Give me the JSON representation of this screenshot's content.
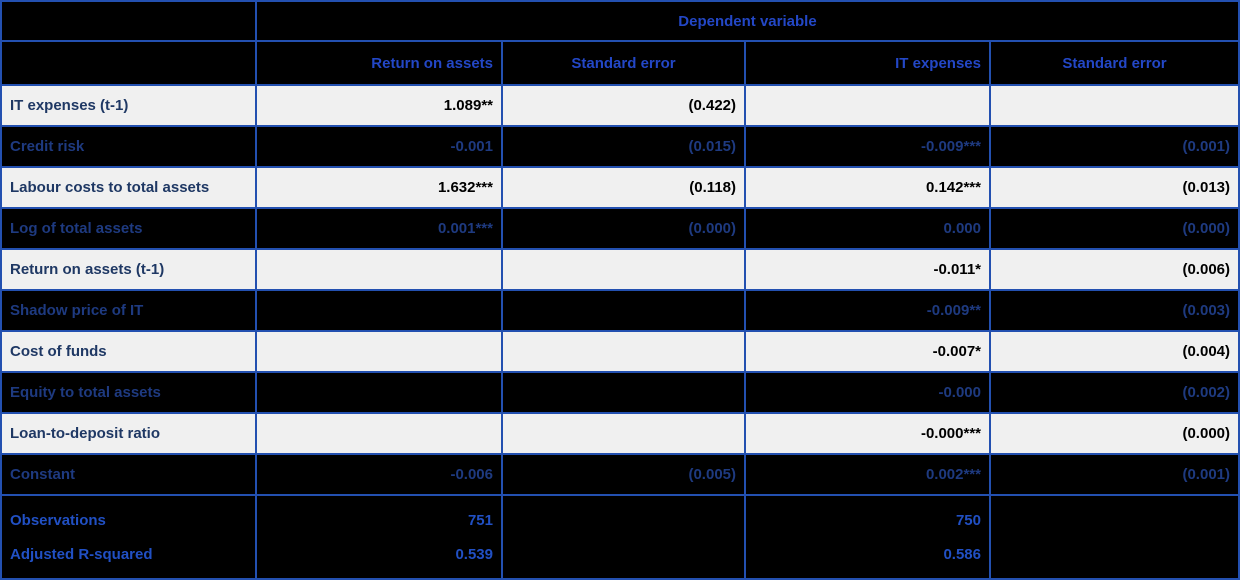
{
  "colors": {
    "background": "#000000",
    "border": "#2350b0",
    "header_text": "#2347c6",
    "light_row_bg": "#f0f0f0",
    "light_label": "#1f3864",
    "light_value": "#000000",
    "dark_text": "#1e3a80",
    "footer_text": "#2150c4"
  },
  "table": {
    "top_header": "Dependent variable",
    "column_headers": [
      "Return on assets",
      "Standard error",
      "IT expenses",
      "Standard error"
    ],
    "rows": [
      {
        "label": "IT expenses (t-1)",
        "roa": "1.089**",
        "roa_se": "(0.422)",
        "it": "",
        "it_se": ""
      },
      {
        "label": "Credit risk",
        "roa": "-0.001",
        "roa_se": "(0.015)",
        "it": "-0.009***",
        "it_se": "(0.001)"
      },
      {
        "label": "Labour costs to total assets",
        "roa": "1.632***",
        "roa_se": "(0.118)",
        "it": "0.142***",
        "it_se": "(0.013)"
      },
      {
        "label": "Log of total assets",
        "roa": "0.001***",
        "roa_se": "(0.000)",
        "it": "0.000",
        "it_se": "(0.000)"
      },
      {
        "label": "Return on assets (t-1)",
        "roa": "",
        "roa_se": "",
        "it": "-0.011*",
        "it_se": "(0.006)"
      },
      {
        "label": "Shadow price of IT",
        "roa": "",
        "roa_se": "",
        "it": "-0.009**",
        "it_se": "(0.003)"
      },
      {
        "label": "Cost of funds",
        "roa": "",
        "roa_se": "",
        "it": "-0.007*",
        "it_se": "(0.004)"
      },
      {
        "label": "Equity to total assets",
        "roa": "",
        "roa_se": "",
        "it": "-0.000",
        "it_se": "(0.002)"
      },
      {
        "label": "Loan-to-deposit ratio",
        "roa": "",
        "roa_se": "",
        "it": "-0.000***",
        "it_se": "(0.000)"
      },
      {
        "label": "Constant",
        "roa": "-0.006",
        "roa_se": "(0.005)",
        "it": "0.002***",
        "it_se": "(0.001)"
      }
    ],
    "summary": [
      {
        "label": "Observations",
        "roa": "751",
        "it": "750"
      },
      {
        "label": "Adjusted R-squared",
        "roa": "0.539",
        "it": "0.586"
      }
    ]
  }
}
